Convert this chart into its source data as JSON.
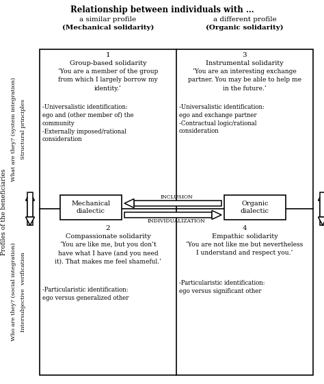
{
  "title": "Relationship between individuals with …",
  "col1_header1": "a similar profile",
  "col1_header2": "(Mechanical solidarity)",
  "col2_header1": "a different profile",
  "col2_header2": "(Organic solidarity)",
  "row1_label1": "What are they? (system integration)",
  "row1_label2": "Structural principles",
  "row2_label1": "Who are they? (social integration)",
  "row2_label2": "Intersubjective  verification",
  "y_axis_label": "Profiles of the beneficiaries",
  "cell1_num": "1",
  "cell1_title": "Group-based solidarity",
  "cell1_quote": "‘You are a member of the group\nfrom which I largely borrow my\nidentity.’",
  "cell1_bullets": "-Universalistic identification:\nego and (other member of) the\ncommunity\n-Externally imposed/rational\nconsideration",
  "cell2_num": "2",
  "cell2_title": "Compassionate solidarity",
  "cell2_quote": "‘You are like me, but you don’t\nhave what I have (and you need\nit). That makes me feel shameful.’",
  "cell2_bullets": "-Particularistic identification:\nego versus generalized other",
  "cell3_num": "3",
  "cell3_title": "Instrumental solidarity",
  "cell3_quote": "‘You are an interesting exchange\npartner. You may be able to help me\nin the future.’",
  "cell3_bullets": "-Universalistic identification:\nego and exchange partner\n-Contractual logic/rational\nconsideration",
  "cell4_num": "4",
  "cell4_title": "Empathic solidarity",
  "cell4_quote": "‘You are not like me but nevertheless\nI understand and respect you.’",
  "cell4_bullets": "-Particularistic identification:\nego versus significant other",
  "mech_label": "Mechanical\ndialectic",
  "org_label": "Organic\ndialectic",
  "inclusion_label": "Inclusion",
  "individualization_label": "Individualization",
  "bg_color": "#ffffff",
  "text_color": "#000000",
  "border_color": "#000000",
  "figw": 4.74,
  "figh": 5.61,
  "dpi": 100
}
